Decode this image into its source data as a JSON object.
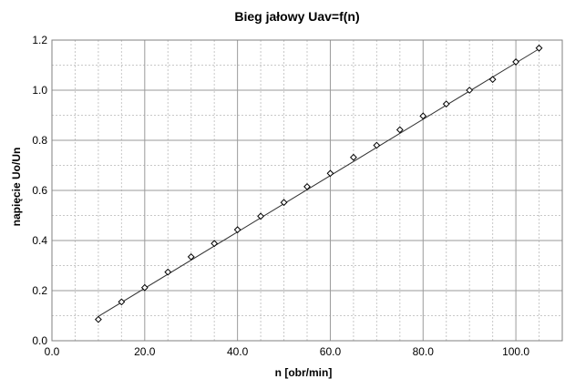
{
  "chart_data": {
    "type": "scatter",
    "title": "Bieg jałowy Uav=f(n)",
    "xlabel": "n [obr/min]",
    "ylabel": "napięcie Uo/Un",
    "xlim": [
      0,
      110
    ],
    "ylim": [
      0,
      1.2
    ],
    "x_ticks": [
      0,
      20,
      40,
      60,
      80,
      100
    ],
    "x_tick_labels": [
      "0.0",
      "20.0",
      "40.0",
      "60.0",
      "80.0",
      "100.0"
    ],
    "x_minor_step": 5,
    "y_ticks": [
      0,
      0.2,
      0.4,
      0.6,
      0.8,
      1.0,
      1.2
    ],
    "y_tick_labels": [
      "0.0",
      "0.2",
      "0.4",
      "0.6",
      "0.8",
      "1.0",
      "1.2"
    ],
    "y_minor_step": 0.1,
    "grid": true,
    "marker": "open-diamond",
    "trendline": {
      "type": "linear",
      "x": [
        10,
        105
      ],
      "y": [
        0.097,
        1.165
      ]
    },
    "x": [
      10,
      15,
      20,
      25,
      30,
      35,
      40,
      45,
      50,
      55,
      60,
      65,
      70,
      75,
      80,
      85,
      90,
      95,
      100,
      105
    ],
    "y": [
      0.085,
      0.155,
      0.212,
      0.274,
      0.335,
      0.388,
      0.443,
      0.497,
      0.552,
      0.615,
      0.668,
      0.732,
      0.78,
      0.842,
      0.897,
      0.945,
      1.0,
      1.043,
      1.113,
      1.168
    ]
  }
}
